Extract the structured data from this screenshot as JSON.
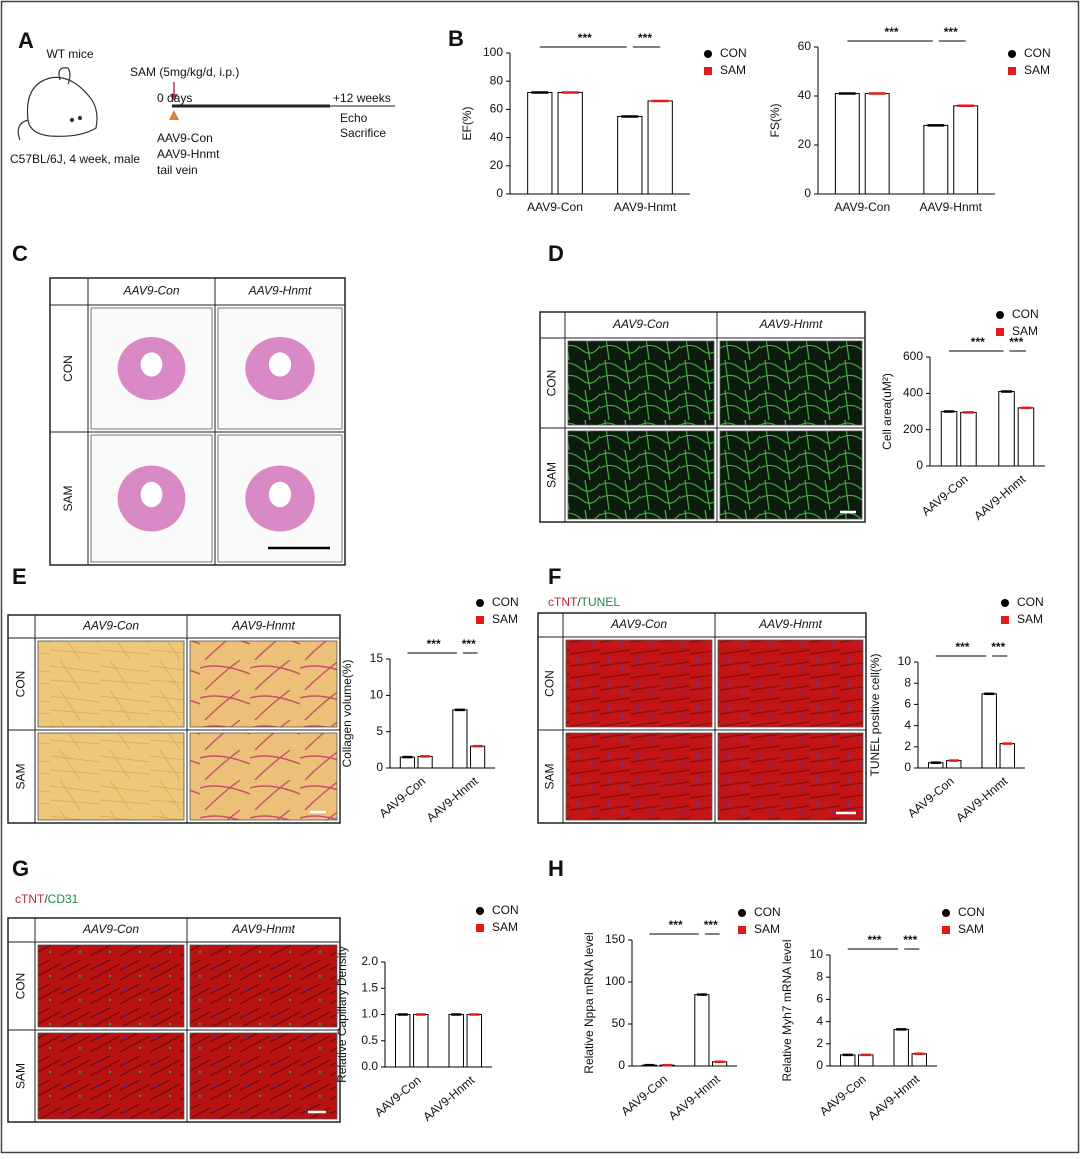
{
  "panel_labels": [
    "A",
    "B",
    "C",
    "D",
    "E",
    "F",
    "G",
    "H"
  ],
  "panel_a": {
    "animal": "WT mice",
    "strain": "C57BL/6J, 4 week, male",
    "treatment": "SAM (5mg/kg/d, i.p.)",
    "start": "0 days",
    "end": "+12 weeks",
    "endpoints": [
      "Echo",
      "Sacrifice"
    ],
    "injection": [
      "AAV9-Con",
      "AAV9-Hnmt",
      "tail vein"
    ]
  },
  "image_grids": {
    "columns": [
      "AAV9-Con",
      "AAV9-Hnmt"
    ],
    "rows": [
      "CON",
      "SAM"
    ]
  },
  "stain_labels": {
    "F": [
      "cTNT",
      "/",
      "TUNEL"
    ],
    "G": [
      "cTNT",
      "/",
      "CD31"
    ]
  },
  "chart_data": [
    {
      "type": "bar",
      "ylabel": "EF(%)",
      "categories": [
        "AAV9-Con",
        "AAV9-Hnmt"
      ],
      "series": [
        {
          "name": "CON",
          "color": "#000000",
          "values": [
            72,
            55
          ]
        },
        {
          "name": "SAM",
          "color": "#e31a1c",
          "values": [
            72,
            66
          ]
        }
      ],
      "ylim": [
        0,
        100
      ],
      "yticks": [
        0,
        20,
        40,
        60,
        80,
        100
      ],
      "annotations": [
        "***",
        "***"
      ]
    },
    {
      "type": "bar",
      "ylabel": "FS(%)",
      "categories": [
        "AAV9-Con",
        "AAV9-Hnmt"
      ],
      "series": [
        {
          "name": "CON",
          "color": "#000000",
          "values": [
            41,
            28
          ]
        },
        {
          "name": "SAM",
          "color": "#e31a1c",
          "values": [
            41,
            36
          ]
        }
      ],
      "ylim": [
        0,
        60
      ],
      "yticks": [
        0,
        20,
        40,
        60
      ],
      "annotations": [
        "***",
        "***"
      ]
    },
    {
      "type": "bar",
      "ylabel": "Cell area(uM²)",
      "categories": [
        "AAV9-Con",
        "AAV9-Hnmt"
      ],
      "series": [
        {
          "name": "CON",
          "color": "#000000",
          "values": [
            300,
            410
          ]
        },
        {
          "name": "SAM",
          "color": "#e31a1c",
          "values": [
            295,
            320
          ]
        }
      ],
      "ylim": [
        0,
        600
      ],
      "yticks": [
        0,
        200,
        400,
        600
      ],
      "annotations": [
        "***",
        "***"
      ]
    },
    {
      "type": "bar",
      "ylabel": "Collagen volume(%)",
      "categories": [
        "AAV9-Con",
        "AAV9-Hnmt"
      ],
      "series": [
        {
          "name": "CON",
          "color": "#000000",
          "values": [
            1.5,
            8
          ]
        },
        {
          "name": "SAM",
          "color": "#e31a1c",
          "values": [
            1.6,
            3
          ]
        }
      ],
      "ylim": [
        0,
        15
      ],
      "yticks": [
        0,
        5,
        10,
        15
      ],
      "annotations": [
        "***",
        "***"
      ]
    },
    {
      "type": "bar",
      "ylabel": "TUNEL positive cell(%)",
      "categories": [
        "AAV9-Con",
        "AAV9-Hnmt"
      ],
      "series": [
        {
          "name": "CON",
          "color": "#000000",
          "values": [
            0.5,
            7
          ]
        },
        {
          "name": "SAM",
          "color": "#e31a1c",
          "values": [
            0.7,
            2.3
          ]
        }
      ],
      "ylim": [
        0,
        10
      ],
      "yticks": [
        0,
        2,
        4,
        6,
        8,
        10
      ],
      "annotations": [
        "***",
        "***"
      ]
    },
    {
      "type": "bar",
      "ylabel": "Relative Capillary Density",
      "categories": [
        "AAV9-Con",
        "AAV9-Hnmt"
      ],
      "series": [
        {
          "name": "CON",
          "color": "#000000",
          "values": [
            1.0,
            1.0
          ]
        },
        {
          "name": "SAM",
          "color": "#e31a1c",
          "values": [
            1.0,
            1.0
          ]
        }
      ],
      "ylim": [
        0,
        2
      ],
      "yticks": [
        {
          "value": 0,
          "label": "0.0"
        },
        {
          "value": 0.5,
          "label": "0.5"
        },
        {
          "value": 1,
          "label": "1.0"
        },
        {
          "value": 1.5,
          "label": "1.5"
        },
        {
          "value": 2,
          "label": "2.0"
        }
      ],
      "annotations": []
    },
    {
      "type": "bar",
      "ylabel": "Relative Nppa mRNA level",
      "categories": [
        "AAV9-Con",
        "AAV9-Hnmt"
      ],
      "series": [
        {
          "name": "CON",
          "color": "#000000",
          "values": [
            1,
            85
          ]
        },
        {
          "name": "SAM",
          "color": "#e31a1c",
          "values": [
            1,
            5
          ]
        }
      ],
      "ylim": [
        0,
        150
      ],
      "yticks": [
        0,
        50,
        100,
        150
      ],
      "annotations": [
        "***",
        "***"
      ]
    },
    {
      "type": "bar",
      "ylabel": "Relative Myh7 mRNA level",
      "categories": [
        "AAV9-Con",
        "AAV9-Hnmt"
      ],
      "series": [
        {
          "name": "CON",
          "color": "#000000",
          "values": [
            1,
            3.3
          ]
        },
        {
          "name": "SAM",
          "color": "#e31a1c",
          "values": [
            1,
            1.1
          ]
        }
      ],
      "ylim": [
        0,
        10
      ],
      "yticks": [
        0,
        2,
        4,
        6,
        8,
        10
      ],
      "annotations": [
        "***",
        "***"
      ]
    }
  ]
}
